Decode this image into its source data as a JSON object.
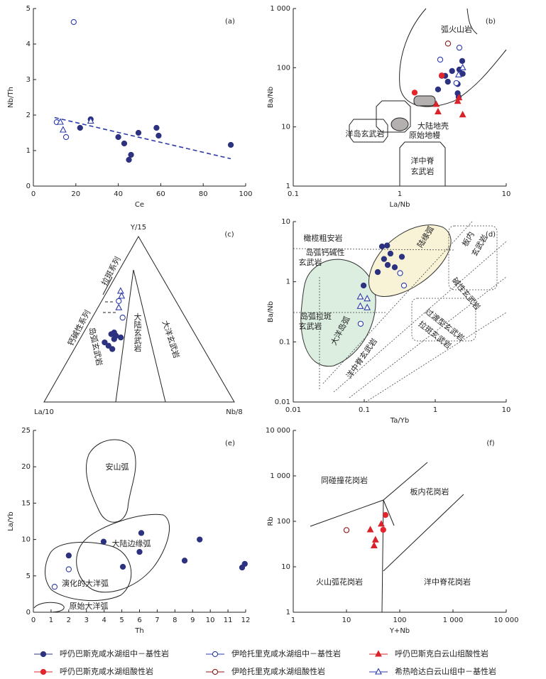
{
  "legend": [
    {
      "name": "呼仍巴斯克咸水湖组中－基性岩",
      "color": "#2c3280",
      "marker": "circle",
      "filled": true
    },
    {
      "name": "伊哈托里克咸水湖组中－基性岩",
      "color": "#2c3aa8",
      "marker": "circle",
      "filled": false
    },
    {
      "name": "呼仍巴斯克白云山组酸性岩",
      "color": "#d9232a",
      "marker": "triangle",
      "filled": true
    },
    {
      "name": "呼仍巴斯克咸水湖组酸性岩",
      "color": "#e2262c",
      "marker": "circle",
      "filled": true
    },
    {
      "name": "伊哈托里克咸水湖组酸性岩",
      "color": "#8b1a1a",
      "marker": "circle",
      "filled": false
    },
    {
      "name": "希热哈达白云山组中－基性岩",
      "color": "#2c3aa8",
      "marker": "triangle",
      "filled": false
    }
  ],
  "chart_data": [
    {
      "type": "scatter",
      "label": "(a)",
      "xlabel": "Ce",
      "ylabel": "Nb/Th",
      "xscale": "linear",
      "yscale": "linear",
      "xlim": [
        0,
        100
      ],
      "ylim": [
        0,
        5
      ],
      "xticks": [
        0,
        20,
        40,
        60,
        80,
        100
      ],
      "yticks": [
        0,
        1,
        2,
        3,
        4,
        5
      ],
      "trend": {
        "x": [
          10,
          93
        ],
        "y": [
          1.93,
          0.77
        ]
      },
      "annotations": [],
      "series": [
        {
          "x": [
            22,
            27,
            40,
            42.8,
            46,
            45,
            49.5,
            58,
            59,
            93
          ],
          "values": [
            1.64,
            1.88,
            1.38,
            1.2,
            0.88,
            0.74,
            1.5,
            1.64,
            1.42,
            1.16
          ]
        },
        {
          "x": [
            19,
            11,
            15.4
          ],
          "values": [
            4.62,
            1.8,
            1.38
          ]
        },
        {
          "x": [],
          "values": []
        },
        {
          "x": [],
          "values": []
        },
        {
          "x": [],
          "values": []
        },
        {
          "x": [
            12.7,
            14,
            27
          ],
          "values": [
            1.8,
            1.58,
            1.83
          ]
        }
      ]
    },
    {
      "type": "scatter",
      "label": "(b)",
      "xlabel": "La/Nb",
      "ylabel": "Ba/Nb",
      "xscale": "log",
      "yscale": "log",
      "xlim": [
        0.1,
        10
      ],
      "ylim": [
        1,
        1000
      ],
      "xticks": [
        0.1,
        1,
        10
      ],
      "yticks": [
        1,
        10,
        100,
        {
          "value": 1000,
          "label": "1 000"
        }
      ],
      "annotations": [
        "弧火山岩",
        "大陆地壳",
        "洋岛玄武岩",
        "原始地幔",
        "洋中脊",
        "玄武岩"
      ],
      "series": [
        {
          "x": [
            3.86,
            3.63,
            3.1,
            2.67,
            2.48,
            2.83,
            3.5,
            3.9,
            3.5,
            3.57,
            2.29
          ],
          "values": [
            130,
            93,
            88,
            73,
            73,
            58,
            53,
            79,
            37,
            32,
            43
          ]
        },
        {
          "x": [
            2.4,
            3.63,
            3.4
          ],
          "values": [
            137,
            218,
            55
          ]
        },
        {
          "x": [
            2.29,
            2.2,
            3.5,
            3.9,
            3.6
          ],
          "values": [
            18,
            24,
            27,
            16,
            31
          ]
        },
        {
          "x": [
            2.48,
            1.38
          ],
          "values": [
            74,
            38
          ]
        },
        {
          "x": [
            2.84
          ],
          "values": [
            256
          ]
        },
        {
          "x": [
            3.9,
            3.57
          ],
          "values": [
            100,
            76
          ]
        }
      ]
    },
    {
      "type": "ternary",
      "label": "(c)",
      "vertices": [
        "La/10",
        "Y/15",
        "Nb/8"
      ],
      "annotations": [
        "拉斑系列",
        "钙碱性系列",
        "岛弧玄武岩",
        "大陆玄武岩",
        "大洋玄武岩"
      ],
      "series": [
        {
          "values": [
            [
              42,
              42,
              16
            ],
            [
              44,
              41,
              15
            ],
            [
              42,
              40,
              18
            ],
            [
              50,
              36,
              14
            ],
            [
              49,
              34,
              17
            ],
            [
              48,
              32,
              20
            ],
            [
              44,
              38,
              18
            ],
            [
              40,
              39,
              21
            ]
          ]
        },
        {
          "values": [
            [
              30,
              61,
              9
            ],
            [
              33,
              51,
              16
            ]
          ]
        },
        {
          "values": []
        },
        {
          "values": []
        },
        {
          "values": []
        },
        {
          "values": [
            [
              26,
              67,
              7
            ],
            [
              27,
              64,
              9
            ],
            [
              32,
              57,
              11
            ]
          ]
        }
      ]
    },
    {
      "type": "scatter",
      "label": "(d)",
      "xlabel": "Ta/Yb",
      "ylabel": "Ba/Nb",
      "xscale": "log",
      "yscale": "log",
      "xlim": [
        0.01,
        10
      ],
      "ylim": [
        0.01,
        10
      ],
      "xticks": [
        0.01,
        0.1,
        1,
        10
      ],
      "yticks": [
        0.01,
        0.1,
        1,
        10
      ],
      "annotations": [
        "橄榄粗安岩",
        "岛弧钙碱性",
        "玄武岩",
        "陆缘弧",
        "板内",
        "玄武岩",
        "碱性玄武岩",
        "岛弧拉斑",
        "玄武岩",
        "大洋岛弧",
        "过渡型玄武岩",
        "拉斑玄武岩",
        "洋中脊玄武岩"
      ],
      "series": [
        {
          "x": [
            0.178,
            0.21,
            0.234,
            0.19,
            0.214,
            0.155,
            0.269,
            0.339,
            0.098
          ],
          "values": [
            3.86,
            4.0,
            2.94,
            2.39,
            1.9,
            1.45,
            1.74,
            2.6,
            0.865
          ]
        },
        {
          "x": [
            0.32,
            0.363,
            0.089
          ],
          "values": [
            1.39,
            0.865,
            0.2
          ]
        },
        {
          "x": [],
          "values": []
        },
        {
          "x": [],
          "values": []
        },
        {
          "x": [],
          "values": []
        },
        {
          "x": [
            0.088,
            0.11,
            0.088,
            0.11
          ],
          "values": [
            0.56,
            0.52,
            0.39,
            0.37
          ]
        }
      ]
    },
    {
      "type": "scatter",
      "label": "(e)",
      "xlabel": "Th",
      "ylabel": "La/Yb",
      "xscale": "linear",
      "yscale": "linear",
      "xlim": [
        0,
        12
      ],
      "ylim": [
        0,
        25
      ],
      "xticks": [
        0,
        1,
        2,
        3,
        4,
        5,
        6,
        7,
        8,
        9,
        10,
        11,
        12
      ],
      "yticks": [
        0,
        5,
        10,
        15,
        20,
        25
      ],
      "annotations": [
        "安山弧",
        "大陆边缘弧",
        "演化的大洋弧",
        "原始大洋弧"
      ],
      "series": [
        {
          "x": [
            2.0,
            3.97,
            5.06,
            6.0,
            6.1,
            8.55,
            9.4,
            11.8,
            11.95
          ],
          "values": [
            7.8,
            9.7,
            6.25,
            8.3,
            10.9,
            7.1,
            10.0,
            6.15,
            6.65
          ]
        },
        {
          "x": [
            1.2,
            2.0
          ],
          "values": [
            3.5,
            5.9
          ]
        },
        {
          "x": [],
          "values": []
        },
        {
          "x": [],
          "values": []
        },
        {
          "x": [],
          "values": []
        },
        {
          "x": [],
          "values": []
        }
      ]
    },
    {
      "type": "scatter",
      "label": "(f)",
      "xlabel": "Y+Nb",
      "ylabel": "Rb",
      "xscale": "log",
      "yscale": "log",
      "xlim": [
        1,
        10000
      ],
      "ylim": [
        1,
        10000
      ],
      "xticks": [
        1,
        10,
        100,
        {
          "value": 1000,
          "label": "1 000"
        },
        {
          "value": 10000,
          "label": "10 000"
        }
      ],
      "yticks": [
        1,
        10,
        100,
        {
          "value": 1000,
          "label": "1 000"
        },
        {
          "value": 10000,
          "label": "10 000"
        }
      ],
      "annotations": [
        "同碰撞花岗岩",
        "板内花岗岩",
        "火山弧花岗岩",
        "洋中脊花岗岩"
      ],
      "series": [
        {
          "x": [],
          "values": []
        },
        {
          "x": [],
          "values": []
        },
        {
          "x": [
            28,
            35,
            33,
            45
          ],
          "values": [
            65,
            39,
            29,
            87
          ]
        },
        {
          "x": [
            54,
            49
          ],
          "values": [
            138,
            65
          ]
        },
        {
          "x": [
            10
          ],
          "values": [
            64
          ]
        },
        {
          "x": [],
          "values": []
        }
      ]
    }
  ]
}
